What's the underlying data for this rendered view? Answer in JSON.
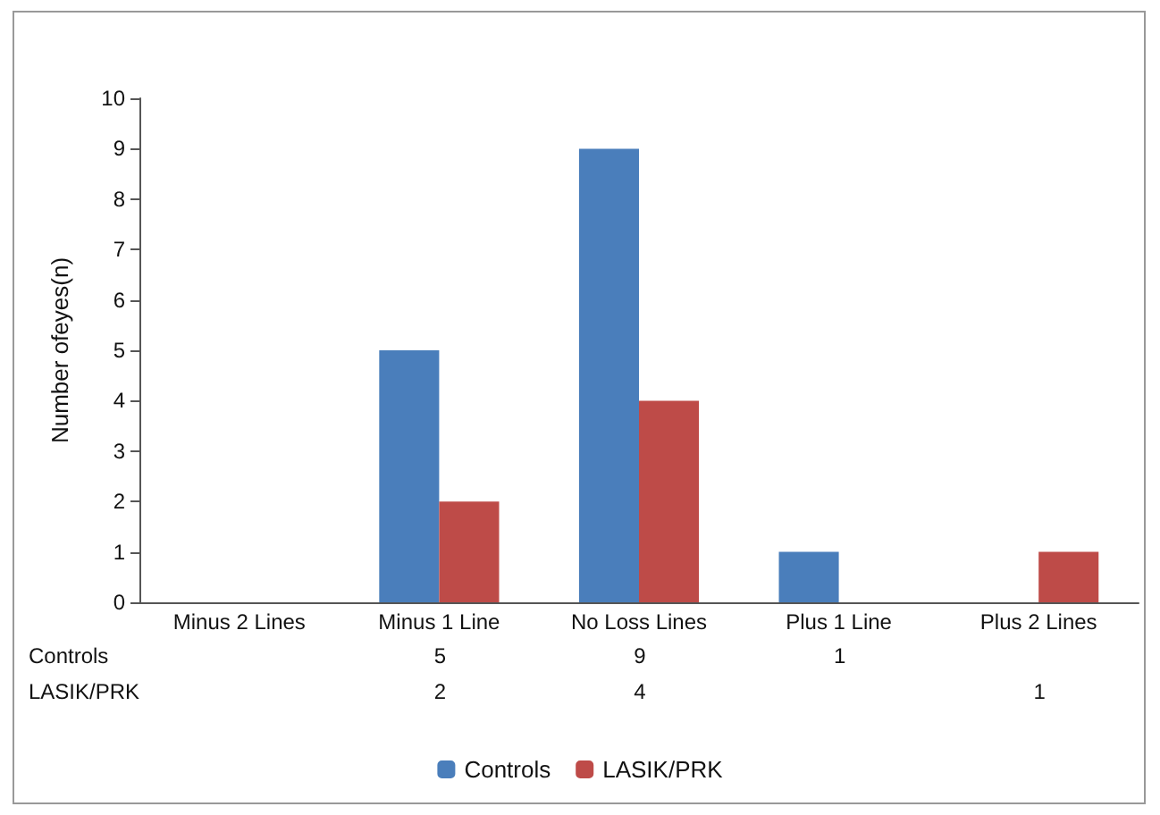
{
  "chart_data": {
    "type": "bar",
    "ylabel": "Number ofeyes(n)",
    "categories": [
      "Minus 2 Lines",
      "Minus 1 Line",
      "No Loss Lines",
      "Plus 1 Line",
      "Plus 2 Lines"
    ],
    "series": [
      {
        "name": "Controls",
        "color": "#4a7ebb",
        "values": [
          null,
          5,
          9,
          1,
          null
        ]
      },
      {
        "name": "LASIK/PRK",
        "color": "#be4b48",
        "values": [
          null,
          2,
          4,
          null,
          1
        ]
      }
    ],
    "ylim": [
      0,
      10
    ],
    "yticks": [
      0,
      1,
      2,
      3,
      4,
      5,
      6,
      7,
      8,
      9,
      10
    ],
    "grid": false,
    "legend": "bottom",
    "data_labels": true
  }
}
